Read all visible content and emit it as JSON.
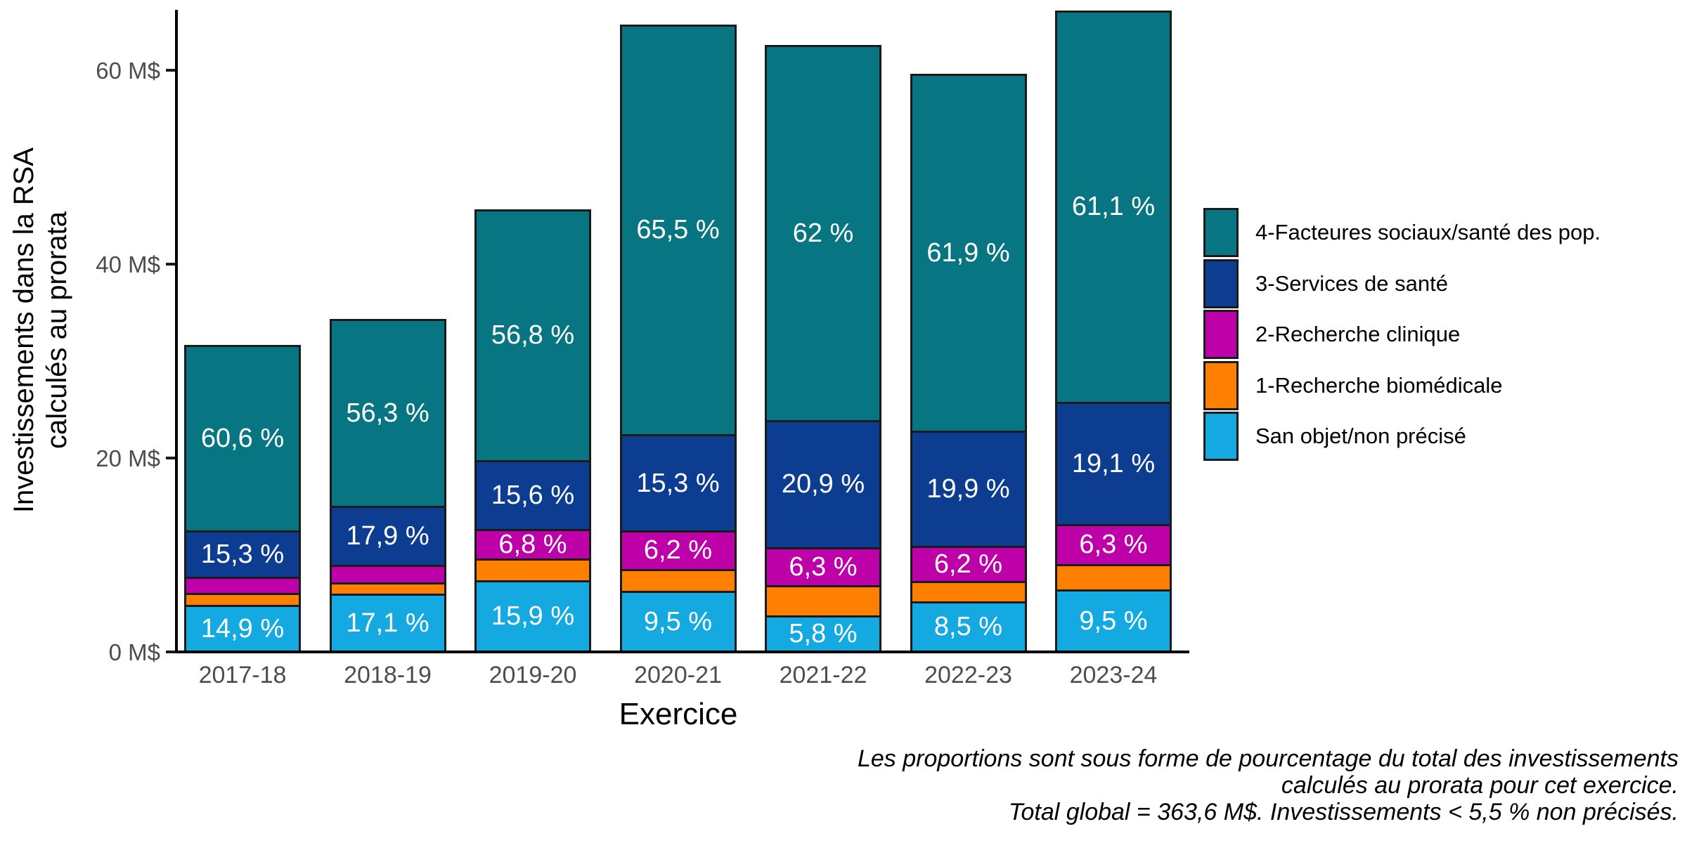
{
  "figure": {
    "background": "#ffffff"
  },
  "colors": {
    "facteurs_sociaux": "#077682",
    "services_sante": "#0d3d91",
    "recherche_clinique": "#be00a8",
    "recherche_biomedicale": "#ff8000",
    "sans_objet": "#14a9e1",
    "axis": "#000000",
    "tick": "#1a1a1a",
    "tick_label": "#4d4d4d",
    "bar_label": "#ffffff",
    "segment_border": "#1a1a1a"
  },
  "chart_data": {
    "type": "bar",
    "stacked": true,
    "xlabel": "Exercice",
    "ylabel_line1": "Investissements dans la RSA",
    "ylabel_line2": "calculés au prorata",
    "categories": [
      "2017-18",
      "2018-19",
      "2019-20",
      "2020-21",
      "2021-22",
      "2022-23",
      "2023-24"
    ],
    "totals_millions": [
      31.5,
      34.2,
      45.5,
      64.6,
      62.5,
      59.5,
      66.0
    ],
    "series": [
      {
        "name": "San objet/non précisé",
        "color": "#14a9e1",
        "pct": [
          14.9,
          17.1,
          15.9,
          9.5,
          5.8,
          8.5,
          9.5
        ]
      },
      {
        "name": "1-Recherche biomédicale",
        "color": "#ff8000",
        "pct": [
          3.9,
          3.4,
          4.9,
          3.5,
          5.0,
          3.5,
          4.0
        ]
      },
      {
        "name": "2-Recherche clinique",
        "color": "#be00a8",
        "pct": [
          5.3,
          5.3,
          6.8,
          6.2,
          6.3,
          6.2,
          6.3
        ]
      },
      {
        "name": "3-Services de santé",
        "color": "#0d3d91",
        "pct": [
          15.3,
          17.9,
          15.6,
          15.3,
          20.9,
          19.9,
          19.1
        ]
      },
      {
        "name": "4-Facteures sociaux/santé des pop.",
        "color": "#077682",
        "pct": [
          60.6,
          56.3,
          56.8,
          65.5,
          62.0,
          61.9,
          61.1
        ]
      }
    ],
    "label_threshold_pct": 5.5,
    "ylim": [
      0,
      66
    ],
    "yticks": [
      {
        "value": 0,
        "label": "0 M$"
      },
      {
        "value": 20,
        "label": "20 M$"
      },
      {
        "value": 40,
        "label": "40 M$"
      },
      {
        "value": 60,
        "label": "60 M$"
      }
    ],
    "grid": false,
    "legend": {
      "position": "right",
      "entries": [
        {
          "label": "4-Facteures sociaux/santé des pop.",
          "color": "#077682"
        },
        {
          "label": "3-Services de santé",
          "color": "#0d3d91"
        },
        {
          "label": "2-Recherche clinique",
          "color": "#be00a8"
        },
        {
          "label": "1-Recherche biomédicale",
          "color": "#ff8000"
        },
        {
          "label": "San objet/non précisé",
          "color": "#14a9e1"
        }
      ]
    },
    "caption_lines": [
      "Les proportions sont sous forme de pourcentage du total des investissements",
      "calculés au prorata pour cet exercice.",
      "Total global = 363,6 M$. Investissements < 5,5 % non précisés."
    ]
  }
}
